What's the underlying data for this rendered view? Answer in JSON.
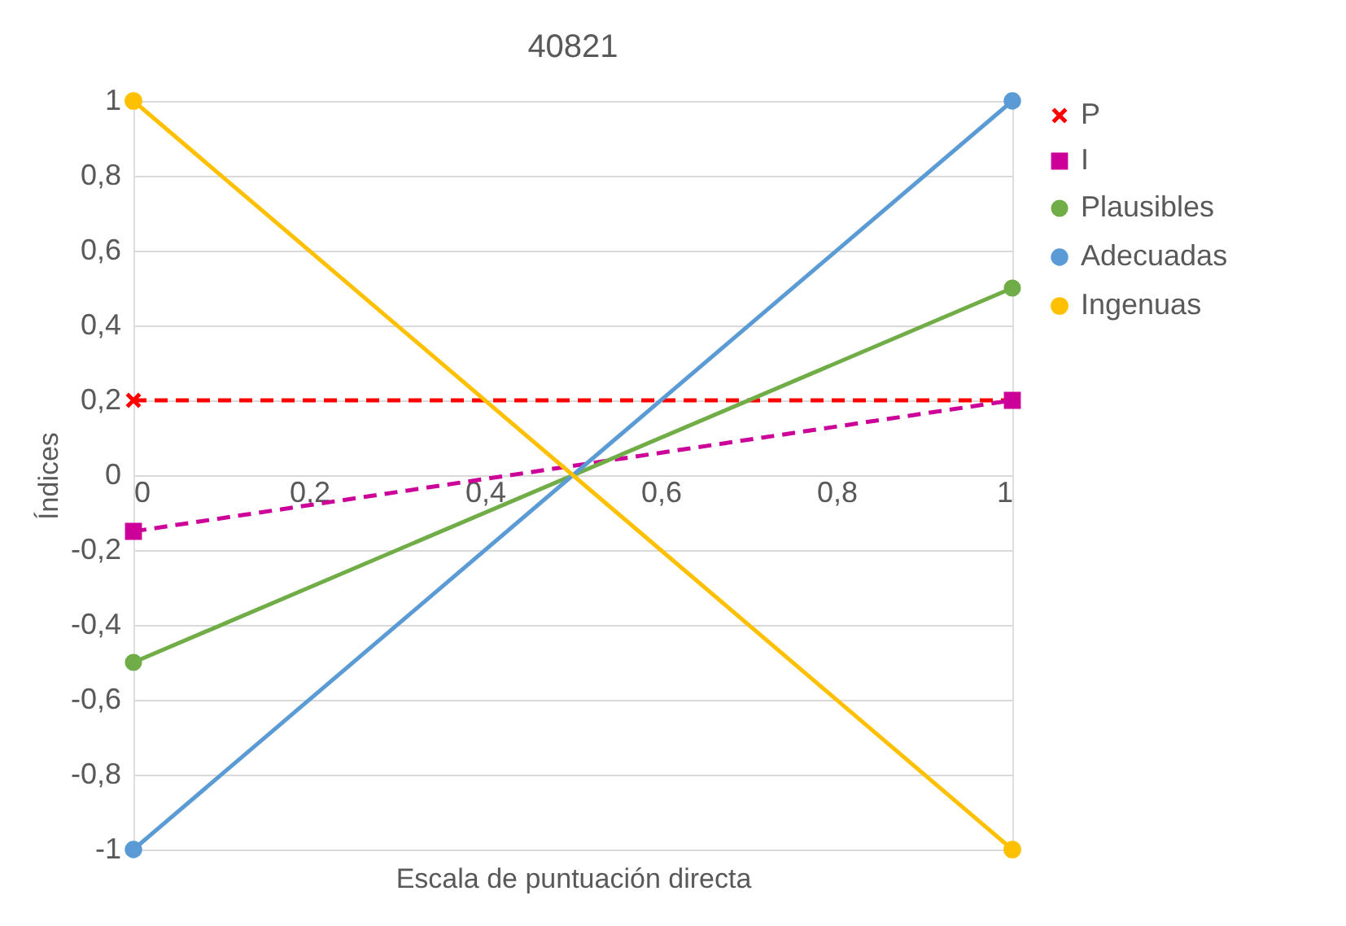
{
  "chart_data": {
    "type": "line",
    "title": "40821",
    "xlabel": "Escala de puntuación directa",
    "ylabel": "Índices",
    "x": [
      0,
      1
    ],
    "series": [
      {
        "name": "P",
        "color": "#ff0000",
        "values": [
          0.2,
          0.2
        ],
        "marker": "cross",
        "line_style": "dashed"
      },
      {
        "name": "I",
        "color": "#cc0099",
        "values": [
          -0.15,
          0.2
        ],
        "marker": "square",
        "line_style": "dashed"
      },
      {
        "name": "Plausibles",
        "color": "#70ad47",
        "values": [
          -0.5,
          0.5
        ],
        "marker": "circle",
        "line_style": "solid"
      },
      {
        "name": "Adecuadas",
        "color": "#5b9bd5",
        "values": [
          -1,
          1
        ],
        "marker": "circle",
        "line_style": "solid"
      },
      {
        "name": "Ingenuas",
        "color": "#ffc000",
        "values": [
          1,
          -1
        ],
        "marker": "circle",
        "line_style": "solid"
      }
    ],
    "xlim": [
      0,
      1
    ],
    "xticks": [
      0,
      {
        "value": 0.2,
        "label": "0,2"
      },
      {
        "value": 0.4,
        "label": "0,4"
      },
      {
        "value": 0.6,
        "label": "0,6"
      },
      {
        "value": 0.8,
        "label": "0,8"
      },
      1
    ],
    "ylim": [
      -1,
      1
    ],
    "yticks": [
      -1,
      {
        "value": -0.8,
        "label": "-0,8"
      },
      {
        "value": -0.6,
        "label": "-0,6"
      },
      {
        "value": -0.4,
        "label": "-0,4"
      },
      {
        "value": -0.2,
        "label": "-0,2"
      },
      0,
      {
        "value": 0.2,
        "label": "0,2"
      },
      {
        "value": 0.4,
        "label": "0,4"
      },
      {
        "value": 0.6,
        "label": "0,6"
      },
      {
        "value": 0.8,
        "label": "0,8"
      },
      1
    ],
    "grid": "y",
    "legend": "right"
  }
}
